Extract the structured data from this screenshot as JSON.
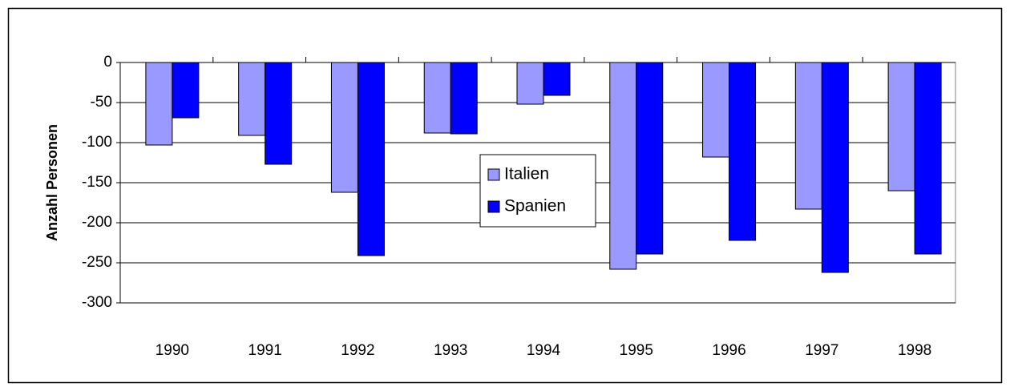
{
  "chart_data": {
    "type": "bar",
    "y_label": "Anzahl Personen",
    "categories": [
      "1990",
      "1991",
      "1992",
      "1993",
      "1994",
      "1995",
      "1996",
      "1997",
      "1998"
    ],
    "series": [
      {
        "name": "Italien",
        "color": "#9999ff",
        "values": [
          -103,
          -91,
          -162,
          -88,
          -52,
          -258,
          -118,
          -183,
          -160
        ]
      },
      {
        "name": "Spanien",
        "color": "#0000ff",
        "values": [
          -69,
          -127,
          -241,
          -89,
          -41,
          -239,
          -222,
          -262,
          -239
        ]
      }
    ],
    "ylim": [
      -300,
      0
    ],
    "yticks": [
      0,
      -50,
      -100,
      -150,
      -200,
      -250,
      -300
    ],
    "grid": true,
    "legend": "center"
  }
}
